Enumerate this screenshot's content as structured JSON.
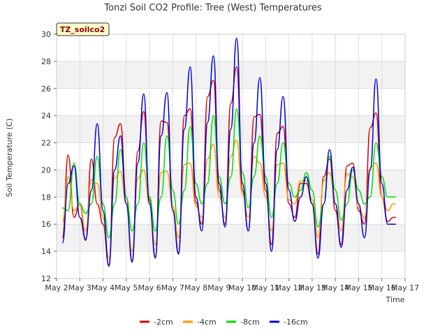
{
  "chart_data": {
    "type": "line",
    "title": "Tonzi Soil CO2 Profile: Tree (West) Temperatures",
    "xlabel": "Time",
    "ylabel": "Soil Temperature (C)",
    "ylim": [
      12,
      30
    ],
    "yticks": [
      12,
      14,
      16,
      18,
      20,
      22,
      24,
      26,
      28,
      30
    ],
    "xlim": [
      2,
      17
    ],
    "xticks": [
      {
        "value": 2,
        "label": "May 2"
      },
      {
        "value": 3,
        "label": "May 3"
      },
      {
        "value": 4,
        "label": "May 4"
      },
      {
        "value": 5,
        "label": "May 5"
      },
      {
        "value": 6,
        "label": "May 6"
      },
      {
        "value": 7,
        "label": "May 7"
      },
      {
        "value": 8,
        "label": "May 8"
      },
      {
        "value": 9,
        "label": "May 9"
      },
      {
        "value": 10,
        "label": "May 10"
      },
      {
        "value": 11,
        "label": "May 11"
      },
      {
        "value": 12,
        "label": "May 12"
      },
      {
        "value": 13,
        "label": "May 13"
      },
      {
        "value": 14,
        "label": "May 14"
      },
      {
        "value": 15,
        "label": "May 15"
      },
      {
        "value": 16,
        "label": "May 16"
      },
      {
        "value": 17,
        "label": "May 17"
      }
    ],
    "badge": "TZ_soilco2",
    "grid": true,
    "legend_position": "bottom",
    "series": [
      {
        "name": "-2cm",
        "color": "#dd0000",
        "x": [
          2.25,
          2.5,
          2.75,
          3.0,
          3.25,
          3.5,
          3.75,
          4.0,
          4.25,
          4.5,
          4.75,
          5.0,
          5.25,
          5.5,
          5.75,
          6.0,
          6.25,
          6.5,
          6.75,
          7.0,
          7.25,
          7.5,
          7.75,
          8.0,
          8.25,
          8.5,
          8.75,
          9.0,
          9.25,
          9.5,
          9.75,
          10.0,
          10.25,
          10.5,
          10.75,
          11.0,
          11.25,
          11.5,
          11.75,
          12.0,
          12.25,
          12.5,
          12.75,
          13.0,
          13.25,
          13.5,
          13.75,
          14.0,
          14.25,
          14.5,
          14.75,
          15.0,
          15.25,
          15.5,
          15.75,
          16.0,
          16.25,
          16.5,
          16.6
        ],
        "y": [
          15.0,
          21.1,
          16.5,
          17.5,
          14.8,
          20.8,
          17.5,
          16.0,
          13.0,
          22.4,
          23.4,
          18.0,
          13.3,
          21.4,
          24.3,
          17.8,
          13.6,
          23.6,
          23.5,
          17.3,
          13.9,
          24.0,
          24.5,
          17.6,
          16.0,
          25.4,
          26.6,
          18.5,
          16.0,
          24.9,
          27.6,
          18.5,
          15.5,
          23.9,
          24.1,
          18.5,
          14.5,
          22.7,
          23.2,
          17.5,
          16.5,
          19.0,
          19.0,
          17.5,
          13.8,
          19.5,
          20.8,
          17.0,
          14.5,
          20.3,
          20.5,
          17.0,
          16.0,
          23.1,
          24.2,
          18.0,
          16.2,
          16.5,
          16.5
        ]
      },
      {
        "name": "-4cm",
        "color": "#ff9900",
        "x": [
          2.25,
          2.5,
          2.75,
          3.0,
          3.25,
          3.5,
          3.75,
          4.0,
          4.25,
          4.5,
          4.75,
          5.0,
          5.25,
          5.5,
          5.75,
          6.0,
          6.25,
          6.5,
          6.75,
          7.0,
          7.25,
          7.5,
          7.75,
          8.0,
          8.25,
          8.5,
          8.75,
          9.0,
          9.25,
          9.5,
          9.75,
          10.0,
          10.25,
          10.5,
          10.75,
          11.0,
          11.25,
          11.5,
          11.75,
          12.0,
          12.25,
          12.5,
          12.75,
          13.0,
          13.25,
          13.5,
          13.75,
          14.0,
          14.25,
          14.5,
          14.75,
          15.0,
          15.25,
          15.5,
          15.75,
          16.0,
          16.25,
          16.5,
          16.6
        ],
        "y": [
          16.2,
          19.5,
          17.0,
          17.5,
          15.5,
          19.3,
          19.0,
          16.5,
          13.5,
          19.4,
          19.9,
          17.5,
          14.0,
          19.4,
          20.0,
          17.5,
          14.5,
          19.8,
          19.9,
          17.3,
          15.0,
          20.4,
          20.5,
          17.3,
          16.5,
          20.8,
          21.9,
          18.0,
          16.5,
          21.0,
          22.2,
          18.2,
          16.5,
          21.0,
          20.5,
          18.0,
          15.5,
          20.4,
          20.5,
          17.8,
          17.5,
          19.2,
          19.2,
          17.8,
          15.0,
          19.2,
          19.8,
          17.5,
          15.5,
          19.7,
          19.5,
          17.2,
          16.5,
          20.2,
          20.5,
          18.0,
          17.0,
          17.5,
          17.5
        ]
      },
      {
        "name": "-8cm",
        "color": "#00dd00",
        "x": [
          2.25,
          2.5,
          2.75,
          3.0,
          3.25,
          3.5,
          3.75,
          4.0,
          4.25,
          4.5,
          4.75,
          5.0,
          5.25,
          5.5,
          5.75,
          6.0,
          6.25,
          6.5,
          6.75,
          7.0,
          7.25,
          7.5,
          7.75,
          8.0,
          8.25,
          8.5,
          8.75,
          9.0,
          9.25,
          9.5,
          9.75,
          10.0,
          10.25,
          10.5,
          10.75,
          11.0,
          11.25,
          11.5,
          11.75,
          12.0,
          12.25,
          12.5,
          12.75,
          13.0,
          13.25,
          13.5,
          13.75,
          14.0,
          14.25,
          14.5,
          14.75,
          15.0,
          15.25,
          15.5,
          15.75,
          16.0,
          16.25,
          16.5,
          16.6
        ],
        "y": [
          17.2,
          17.0,
          20.5,
          17.5,
          16.8,
          17.5,
          21.0,
          17.5,
          15.0,
          17.5,
          21.5,
          18.0,
          15.5,
          17.5,
          22.0,
          18.0,
          15.5,
          18.0,
          22.5,
          18.5,
          16.0,
          18.5,
          23.2,
          19.0,
          17.5,
          19.0,
          24.0,
          19.5,
          17.5,
          19.5,
          24.5,
          19.8,
          17.2,
          19.5,
          22.5,
          19.5,
          16.5,
          19.0,
          22.0,
          19.0,
          18.0,
          18.5,
          19.8,
          18.5,
          15.8,
          17.5,
          21.0,
          18.5,
          16.3,
          17.5,
          20.0,
          18.5,
          17.5,
          18.0,
          22.0,
          19.5,
          18.0,
          18.0,
          18.0
        ]
      },
      {
        "name": "-16cm",
        "color": "#0000dd",
        "x": [
          2.25,
          2.5,
          2.75,
          3.0,
          3.25,
          3.5,
          3.75,
          4.0,
          4.25,
          4.5,
          4.75,
          5.0,
          5.25,
          5.5,
          5.75,
          6.0,
          6.25,
          6.5,
          6.75,
          7.0,
          7.25,
          7.5,
          7.75,
          8.0,
          8.25,
          8.5,
          8.75,
          9.0,
          9.25,
          9.5,
          9.75,
          10.0,
          10.25,
          10.5,
          10.75,
          11.0,
          11.25,
          11.5,
          11.75,
          12.0,
          12.25,
          12.5,
          12.75,
          13.0,
          13.25,
          13.5,
          13.75,
          14.0,
          14.25,
          14.5,
          14.75,
          15.0,
          15.25,
          15.5,
          15.75,
          16.0,
          16.25,
          16.5,
          16.6
        ],
        "y": [
          14.6,
          19.0,
          20.3,
          16.5,
          14.9,
          18.5,
          23.4,
          17.0,
          12.9,
          20.0,
          22.5,
          17.5,
          13.2,
          20.5,
          25.6,
          17.5,
          13.5,
          22.5,
          25.7,
          17.0,
          13.8,
          23.0,
          27.6,
          18.0,
          15.5,
          23.5,
          28.4,
          19.0,
          15.8,
          23.0,
          29.7,
          19.0,
          15.5,
          22.0,
          26.8,
          19.0,
          14.0,
          21.5,
          25.4,
          18.5,
          16.2,
          18.0,
          19.5,
          17.5,
          13.5,
          17.5,
          21.5,
          17.5,
          14.3,
          18.5,
          20.2,
          17.5,
          15.0,
          20.0,
          26.7,
          19.0,
          16.0,
          16.0,
          16.0
        ]
      }
    ]
  }
}
